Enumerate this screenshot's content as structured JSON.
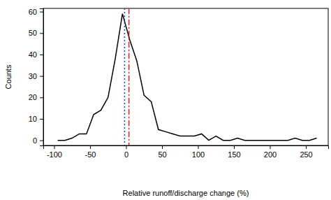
{
  "chart_data": {
    "type": "line",
    "x_label": "Relative runoff/discharge change (%)",
    "y_label": "Counts",
    "x": [
      -95,
      -85,
      -75,
      -65,
      -55,
      -45,
      -35,
      -25,
      -15,
      -5,
      5,
      15,
      25,
      35,
      45,
      55,
      65,
      75,
      85,
      95,
      105,
      115,
      125,
      135,
      145,
      155,
      165,
      175,
      185,
      195,
      205,
      215,
      225,
      235,
      245,
      255,
      265
    ],
    "series": [
      {
        "color": "#000000",
        "line_style": "solid",
        "values": [
          0,
          0,
          1,
          3,
          3,
          12,
          14,
          20,
          38,
          59,
          47,
          37,
          21,
          18,
          5,
          4,
          3,
          2,
          2,
          2,
          3,
          0,
          2,
          0,
          0,
          1,
          0,
          0,
          0,
          0,
          0,
          0,
          0,
          1,
          0,
          0,
          1
        ]
      }
    ],
    "reference_lines": [
      {
        "value": -2,
        "color": "#3030d0",
        "line_style": "dotted"
      },
      {
        "value": 4,
        "color": "#e02020",
        "line_style": "dashdot"
      }
    ],
    "xlim": [
      -115,
      281
    ],
    "ylim": [
      -2.4,
      61.5
    ],
    "xticks": [
      -100,
      -50,
      0,
      50,
      100,
      150,
      200,
      250
    ],
    "yticks": [
      0,
      10,
      20,
      30,
      40,
      50,
      60
    ]
  }
}
